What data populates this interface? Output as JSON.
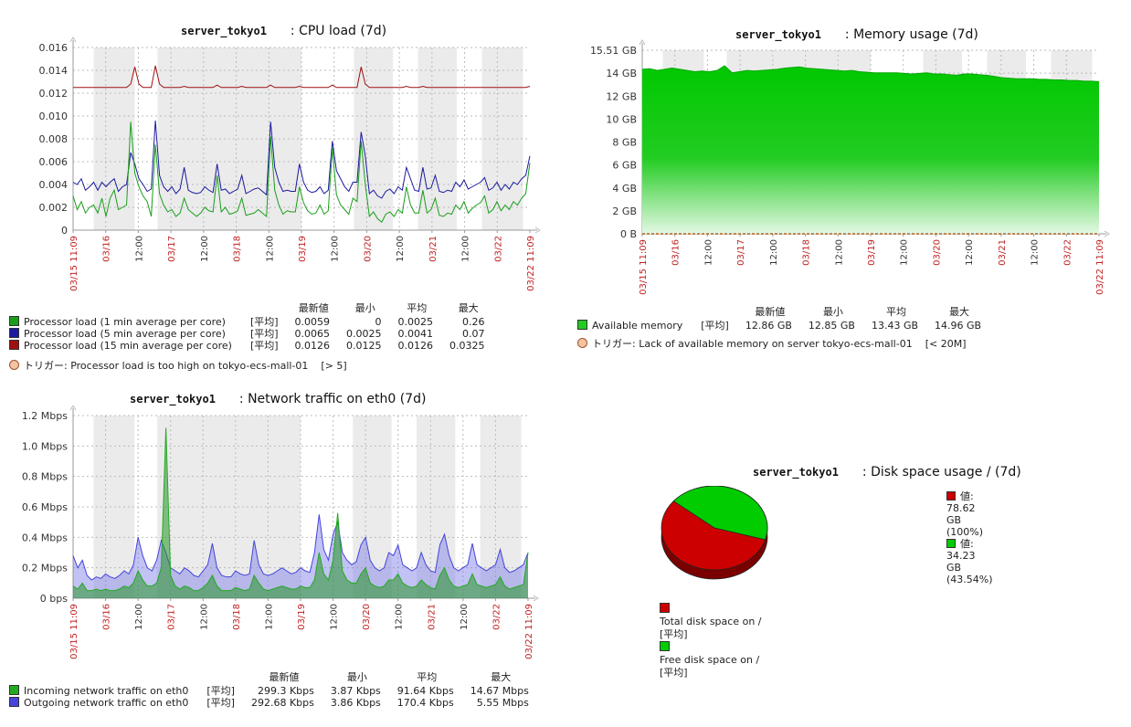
{
  "charts": [
    {
      "id": "cpu",
      "host": "server_tokyo1",
      "title": ": CPU load (7d)",
      "ylabels": [
        "0",
        "0.002",
        "0.004",
        "0.006",
        "0.008",
        "0.010",
        "0.012",
        "0.014",
        "0.016"
      ],
      "xlabels": [
        {
          "t": "03/15 11:09",
          "red": true
        },
        {
          "t": "03/16",
          "red": true
        },
        {
          "t": "12:00",
          "red": false
        },
        {
          "t": "03/17",
          "red": true
        },
        {
          "t": "12:00",
          "red": false
        },
        {
          "t": "03/18",
          "red": true
        },
        {
          "t": "12:00",
          "red": false
        },
        {
          "t": "03/19",
          "red": true
        },
        {
          "t": "12:00",
          "red": false
        },
        {
          "t": "03/20",
          "red": true
        },
        {
          "t": "12:00",
          "red": false
        },
        {
          "t": "03/21",
          "red": true
        },
        {
          "t": "12:00",
          "red": false
        },
        {
          "t": "03/22",
          "red": true
        },
        {
          "t": "03/22 11:09",
          "red": true
        }
      ],
      "legend_headers": [
        "最新値",
        "最小",
        "平均",
        "最大"
      ],
      "legend": [
        {
          "name": "Processor load (1 min average per core)",
          "func": "[平均]",
          "color": "#1a9e1a",
          "values": [
            "0.0059",
            "0",
            "0.0025",
            "0.26"
          ]
        },
        {
          "name": "Processor load (5 min average per core)",
          "func": "[平均]",
          "color": "#1a1a9e",
          "values": [
            "0.0065",
            "0.0025",
            "0.0041",
            "0.07"
          ]
        },
        {
          "name": "Processor load (15 min average per core)",
          "func": "[平均]",
          "color": "#a01010",
          "values": [
            "0.0126",
            "0.0125",
            "0.0126",
            "0.0325"
          ]
        }
      ],
      "trigger": {
        "label": "トリガー: Processor load is too high on tokyo-ecs-mall-01",
        "value": "[> 5]"
      }
    },
    {
      "id": "memory",
      "host": "server_tokyo1",
      "title": ": Memory usage (7d)",
      "ylabels": [
        "0 B",
        "2 GB",
        "4 GB",
        "6 GB",
        "8 GB",
        "10 GB",
        "12 GB",
        "14 GB",
        "15.51 GB"
      ],
      "xlabels": [
        {
          "t": "03/15 11:09",
          "red": true
        },
        {
          "t": "03/16",
          "red": true
        },
        {
          "t": "12:00",
          "red": false
        },
        {
          "t": "03/17",
          "red": true
        },
        {
          "t": "12:00",
          "red": false
        },
        {
          "t": "03/18",
          "red": true
        },
        {
          "t": "12:00",
          "red": false
        },
        {
          "t": "03/19",
          "red": true
        },
        {
          "t": "12:00",
          "red": false
        },
        {
          "t": "03/20",
          "red": true
        },
        {
          "t": "12:00",
          "red": false
        },
        {
          "t": "03/21",
          "red": true
        },
        {
          "t": "12:00",
          "red": false
        },
        {
          "t": "03/22",
          "red": true
        },
        {
          "t": "03/22 11:09",
          "red": true
        }
      ],
      "legend_headers": [
        "最新値",
        "最小",
        "平均",
        "最大"
      ],
      "legend": [
        {
          "name": "Available memory",
          "func": "[平均]",
          "color": "#22cc22",
          "values": [
            "12.86 GB",
            "12.85 GB",
            "13.43 GB",
            "14.96 GB"
          ]
        }
      ],
      "trigger": {
        "label": "トリガー: Lack of available memory on server tokyo-ecs-mall-01",
        "value": "[< 20M]"
      }
    },
    {
      "id": "network",
      "host": "server_tokyo1",
      "title": ": Network traffic on eth0 (7d)",
      "ylabels": [
        "0 bps",
        "0.2 Mbps",
        "0.4 Mbps",
        "0.6 Mbps",
        "0.8 Mbps",
        "1.0 Mbps",
        "1.2 Mbps"
      ],
      "xlabels": [
        {
          "t": "03/15 11:09",
          "red": true
        },
        {
          "t": "03/16",
          "red": true
        },
        {
          "t": "12:00",
          "red": false
        },
        {
          "t": "03/17",
          "red": true
        },
        {
          "t": "12:00",
          "red": false
        },
        {
          "t": "03/18",
          "red": true
        },
        {
          "t": "12:00",
          "red": false
        },
        {
          "t": "03/19",
          "red": true
        },
        {
          "t": "12:00",
          "red": false
        },
        {
          "t": "03/20",
          "red": true
        },
        {
          "t": "12:00",
          "red": false
        },
        {
          "t": "03/21",
          "red": true
        },
        {
          "t": "12:00",
          "red": false
        },
        {
          "t": "03/22",
          "red": true
        },
        {
          "t": "03/22 11:09",
          "red": true
        }
      ],
      "legend_headers": [
        "最新値",
        "最小",
        "平均",
        "最大"
      ],
      "legend": [
        {
          "name": "Incoming network traffic on eth0",
          "func": "[平均]",
          "color": "#22aa22",
          "values": [
            "299.3 Kbps",
            "3.87 Kbps",
            "91.64 Kbps",
            "14.67 Mbps"
          ]
        },
        {
          "name": "Outgoing network traffic on eth0",
          "func": "[平均]",
          "color": "#4444dd",
          "values": [
            "292.68 Kbps",
            "3.86 Kbps",
            "170.4 Kbps",
            "5.55 Mbps"
          ]
        }
      ]
    },
    {
      "id": "disk",
      "host": "server_tokyo1",
      "title": ": Disk space usage / (7d)",
      "pie_legend": [
        {
          "label": "値: 78.62 GB (100%)",
          "color": "#cc0000"
        },
        {
          "label": "値: 34.23 GB (43.54%)",
          "color": "#00cc00"
        }
      ],
      "legend": [
        {
          "name": "Total disk space on /",
          "func": "[平均]",
          "color": "#cc0000"
        },
        {
          "name": "Free disk space on /",
          "func": "[平均]",
          "color": "#00cc00"
        }
      ]
    }
  ],
  "chart_data": [
    {
      "type": "line",
      "title": "server_tokyo1 : CPU load (7d)",
      "x_range": [
        "03/15 11:09",
        "03/22 11:09"
      ],
      "ylim": [
        0,
        0.016
      ],
      "series": [
        {
          "name": "Processor load (1 min average per core)",
          "color": "#1a9e1a",
          "values": [
            0.003,
            0.0018,
            0.0025,
            0.0015,
            0.002,
            0.0022,
            0.0015,
            0.0028,
            0.0012,
            0.0028,
            0.0035,
            0.0018,
            0.002,
            0.0022,
            0.0095,
            0.005,
            0.0038,
            0.003,
            0.0025,
            0.0012,
            0.0075,
            0.0032,
            0.0022,
            0.0016,
            0.0018,
            0.0012,
            0.0015,
            0.0028,
            0.0018,
            0.0015,
            0.0012,
            0.0015,
            0.002,
            0.0017,
            0.0016,
            0.0048,
            0.0016,
            0.002,
            0.0014,
            0.0015,
            0.0017,
            0.0028,
            0.0013,
            0.0014,
            0.0015,
            0.0018,
            0.0015,
            0.0012,
            0.0082,
            0.0035,
            0.0022,
            0.0014,
            0.0017,
            0.0016,
            0.0016,
            0.0038,
            0.0024,
            0.0017,
            0.0014,
            0.0015,
            0.0022,
            0.0014,
            0.0017,
            0.0072,
            0.0031,
            0.0022,
            0.0018,
            0.0014,
            0.0028,
            0.0025,
            0.0078,
            0.004,
            0.0012,
            0.0016,
            0.001,
            0.0007,
            0.0014,
            0.0016,
            0.0012,
            0.0018,
            0.0015,
            0.0038,
            0.0022,
            0.0015,
            0.0015,
            0.0035,
            0.0015,
            0.0018,
            0.0028,
            0.0013,
            0.0012,
            0.0015,
            0.0014,
            0.0022,
            0.0018,
            0.0025,
            0.0015,
            0.0019,
            0.0022,
            0.0024,
            0.003,
            0.0015,
            0.0018,
            0.0025,
            0.0017,
            0.0022,
            0.0018,
            0.0025,
            0.0022,
            0.0028,
            0.0032,
            0.0059
          ]
        },
        {
          "name": "Processor load (5 min average per core)",
          "color": "#1a1a9e",
          "values": [
            0.0042,
            0.004,
            0.0045,
            0.0035,
            0.0038,
            0.0042,
            0.0035,
            0.0042,
            0.0038,
            0.0042,
            0.0045,
            0.0034,
            0.0038,
            0.004,
            0.0068,
            0.0058,
            0.0045,
            0.004,
            0.0034,
            0.0036,
            0.0096,
            0.0048,
            0.0038,
            0.0034,
            0.0038,
            0.0032,
            0.0036,
            0.0055,
            0.0035,
            0.0033,
            0.0032,
            0.0033,
            0.0038,
            0.0035,
            0.0033,
            0.0058,
            0.0035,
            0.0036,
            0.0032,
            0.0034,
            0.0036,
            0.0048,
            0.0032,
            0.0034,
            0.0036,
            0.0037,
            0.0034,
            0.0031,
            0.0095,
            0.0055,
            0.0042,
            0.0034,
            0.0035,
            0.0034,
            0.0034,
            0.0058,
            0.0042,
            0.0035,
            0.0033,
            0.0034,
            0.0038,
            0.0032,
            0.0035,
            0.0078,
            0.0052,
            0.0045,
            0.0038,
            0.0034,
            0.0042,
            0.0042,
            0.0086,
            0.0065,
            0.0032,
            0.0035,
            0.003,
            0.0028,
            0.0034,
            0.0036,
            0.0032,
            0.0038,
            0.0035,
            0.0055,
            0.0045,
            0.0035,
            0.0034,
            0.0055,
            0.0036,
            0.0037,
            0.0048,
            0.0034,
            0.0033,
            0.0035,
            0.0034,
            0.0042,
            0.0038,
            0.0044,
            0.0036,
            0.0038,
            0.004,
            0.0042,
            0.0046,
            0.0035,
            0.0037,
            0.0042,
            0.0035,
            0.004,
            0.0036,
            0.0042,
            0.004,
            0.0045,
            0.0048,
            0.0065
          ]
        },
        {
          "name": "Processor load (15 min average per core)",
          "color": "#a01010",
          "values": [
            0.0125,
            0.0125,
            0.0125,
            0.0125,
            0.0125,
            0.0125,
            0.0125,
            0.0125,
            0.0125,
            0.0125,
            0.0125,
            0.0125,
            0.0125,
            0.0125,
            0.0128,
            0.0143,
            0.0128,
            0.0125,
            0.0125,
            0.0125,
            0.0144,
            0.0128,
            0.0125,
            0.0125,
            0.0125,
            0.0125,
            0.0125,
            0.0126,
            0.0125,
            0.0125,
            0.0125,
            0.0125,
            0.0125,
            0.0125,
            0.0125,
            0.0127,
            0.0125,
            0.0125,
            0.0125,
            0.0125,
            0.0125,
            0.0126,
            0.0125,
            0.0125,
            0.0125,
            0.0125,
            0.0125,
            0.0125,
            0.0127,
            0.0125,
            0.0125,
            0.0125,
            0.0125,
            0.0125,
            0.0125,
            0.0126,
            0.0125,
            0.0125,
            0.0125,
            0.0125,
            0.0125,
            0.0125,
            0.0125,
            0.0127,
            0.0125,
            0.0125,
            0.0125,
            0.0125,
            0.0125,
            0.0125,
            0.0143,
            0.0128,
            0.0125,
            0.0125,
            0.0125,
            0.0125,
            0.0125,
            0.0125,
            0.0125,
            0.0125,
            0.0125,
            0.0126,
            0.0125,
            0.0125,
            0.0125,
            0.0126,
            0.0125,
            0.0125,
            0.0125,
            0.0125,
            0.0125,
            0.0125,
            0.0125,
            0.0125,
            0.0125,
            0.0125,
            0.0125,
            0.0125,
            0.0125,
            0.0125,
            0.0125,
            0.0125,
            0.0125,
            0.0125,
            0.0125,
            0.0125,
            0.0125,
            0.0125,
            0.0125,
            0.0125,
            0.0125,
            0.0126
          ]
        }
      ]
    },
    {
      "type": "area",
      "title": "server_tokyo1 : Memory usage (7d)",
      "x_range": [
        "03/15 11:09",
        "03/22 11:09"
      ],
      "ylim": [
        0,
        15.51
      ],
      "series": [
        {
          "name": "Available memory",
          "color": "#22cc22",
          "values": [
            13.9,
            13.95,
            13.8,
            13.9,
            14.0,
            13.9,
            13.8,
            13.7,
            13.75,
            13.7,
            13.8,
            14.2,
            13.6,
            13.7,
            13.8,
            13.75,
            13.8,
            13.85,
            13.9,
            14.0,
            14.05,
            14.1,
            14.0,
            13.95,
            13.9,
            13.85,
            13.8,
            13.75,
            13.8,
            13.7,
            13.65,
            13.6,
            13.6,
            13.6,
            13.6,
            13.55,
            13.5,
            13.55,
            13.6,
            13.5,
            13.5,
            13.45,
            13.4,
            13.5,
            13.5,
            13.45,
            13.4,
            13.3,
            13.2,
            13.15,
            13.1,
            13.1,
            13.1,
            13.05,
            13.05,
            13.0,
            13.0,
            12.95,
            12.95,
            12.9,
            12.9,
            12.86
          ]
        }
      ]
    },
    {
      "type": "area",
      "title": "server_tokyo1 : Network traffic on eth0 (7d)",
      "x_range": [
        "03/15 11:09",
        "03/22 11:09"
      ],
      "ylim": [
        0,
        1.2
      ],
      "yunit": "Mbps",
      "series": [
        {
          "name": "Outgoing network traffic on eth0",
          "color": "#4444dd",
          "values": [
            0.28,
            0.2,
            0.25,
            0.15,
            0.12,
            0.14,
            0.13,
            0.16,
            0.14,
            0.13,
            0.15,
            0.18,
            0.16,
            0.22,
            0.4,
            0.28,
            0.2,
            0.18,
            0.25,
            0.38,
            0.3,
            0.2,
            0.18,
            0.16,
            0.2,
            0.18,
            0.15,
            0.14,
            0.18,
            0.22,
            0.36,
            0.2,
            0.15,
            0.14,
            0.14,
            0.18,
            0.16,
            0.15,
            0.16,
            0.38,
            0.22,
            0.16,
            0.15,
            0.16,
            0.18,
            0.2,
            0.18,
            0.16,
            0.17,
            0.2,
            0.18,
            0.17,
            0.3,
            0.55,
            0.32,
            0.25,
            0.42,
            0.5,
            0.3,
            0.25,
            0.22,
            0.24,
            0.35,
            0.4,
            0.25,
            0.2,
            0.18,
            0.2,
            0.3,
            0.28,
            0.35,
            0.22,
            0.2,
            0.18,
            0.2,
            0.3,
            0.22,
            0.18,
            0.17,
            0.35,
            0.42,
            0.28,
            0.2,
            0.18,
            0.2,
            0.22,
            0.36,
            0.22,
            0.2,
            0.18,
            0.2,
            0.22,
            0.32,
            0.2,
            0.17,
            0.18,
            0.2,
            0.22,
            0.3
          ]
        },
        {
          "name": "Incoming network traffic on eth0",
          "color": "#22aa22",
          "values": [
            0.08,
            0.06,
            0.1,
            0.05,
            0.05,
            0.06,
            0.05,
            0.06,
            0.05,
            0.05,
            0.06,
            0.08,
            0.07,
            0.1,
            0.18,
            0.12,
            0.08,
            0.08,
            0.1,
            0.2,
            1.12,
            0.15,
            0.08,
            0.06,
            0.08,
            0.07,
            0.05,
            0.05,
            0.07,
            0.1,
            0.15,
            0.08,
            0.05,
            0.05,
            0.05,
            0.07,
            0.06,
            0.05,
            0.06,
            0.15,
            0.1,
            0.06,
            0.05,
            0.06,
            0.07,
            0.08,
            0.07,
            0.06,
            0.06,
            0.08,
            0.07,
            0.07,
            0.12,
            0.3,
            0.16,
            0.12,
            0.25,
            0.56,
            0.18,
            0.12,
            0.1,
            0.1,
            0.16,
            0.2,
            0.1,
            0.08,
            0.07,
            0.08,
            0.12,
            0.12,
            0.16,
            0.1,
            0.08,
            0.07,
            0.08,
            0.12,
            0.09,
            0.07,
            0.06,
            0.15,
            0.2,
            0.12,
            0.08,
            0.07,
            0.08,
            0.09,
            0.16,
            0.09,
            0.08,
            0.07,
            0.08,
            0.09,
            0.14,
            0.08,
            0.06,
            0.07,
            0.08,
            0.09,
            0.3
          ]
        }
      ]
    },
    {
      "type": "pie",
      "title": "server_tokyo1 : Disk space usage / (7d)",
      "labels": [
        "Total disk space on /",
        "Free disk space on /"
      ],
      "values": [
        78.62,
        34.23
      ],
      "percent_free": 43.54,
      "unit": "GB"
    }
  ]
}
